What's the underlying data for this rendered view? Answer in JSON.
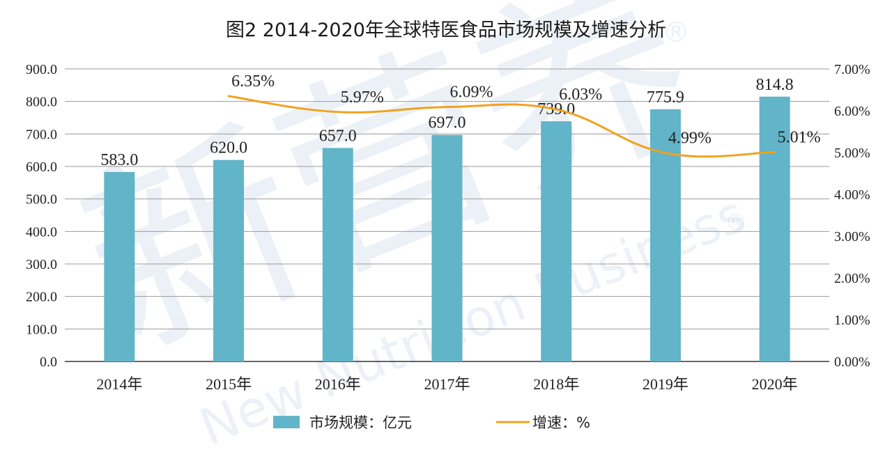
{
  "chart_data": {
    "type": "bar",
    "title": "图2 2014-2020年全球特医食品市场规模及增速分析",
    "categories": [
      "2014年",
      "2015年",
      "2016年",
      "2017年",
      "2018年",
      "2019年",
      "2020年"
    ],
    "series": [
      {
        "name": "市场规模：亿元",
        "type": "bar",
        "axis": "left",
        "color": "#62b4c8",
        "values": [
          583.0,
          620.0,
          657.0,
          697.0,
          739.0,
          775.9,
          814.8
        ],
        "labels": [
          "583.0",
          "620.0",
          "657.0",
          "697.0",
          "739.0",
          "775.9",
          "814.8"
        ]
      },
      {
        "name": "增速：%",
        "type": "line",
        "axis": "right",
        "color": "#f0a21f",
        "values": [
          null,
          6.35,
          5.97,
          6.09,
          6.03,
          4.99,
          5.01
        ],
        "labels": [
          "",
          "6.35%",
          "5.97%",
          "6.09%",
          "6.03%",
          "4.99%",
          "5.01%"
        ]
      }
    ],
    "y_left": {
      "min": 0,
      "max": 900,
      "step": 100,
      "tick_labels": [
        "0.0",
        "100.0",
        "200.0",
        "300.0",
        "400.0",
        "500.0",
        "600.0",
        "700.0",
        "800.0",
        "900.0"
      ]
    },
    "y_right": {
      "min": 0,
      "max": 7,
      "step": 1,
      "tick_labels": [
        "0.00%",
        "1.00%",
        "2.00%",
        "3.00%",
        "4.00%",
        "5.00%",
        "6.00%",
        "7.00%"
      ]
    },
    "grid": true,
    "legend": "bottom"
  },
  "watermark": {
    "text": "新营养",
    "subtext": "New Nutrition Business",
    "mark": "®"
  }
}
